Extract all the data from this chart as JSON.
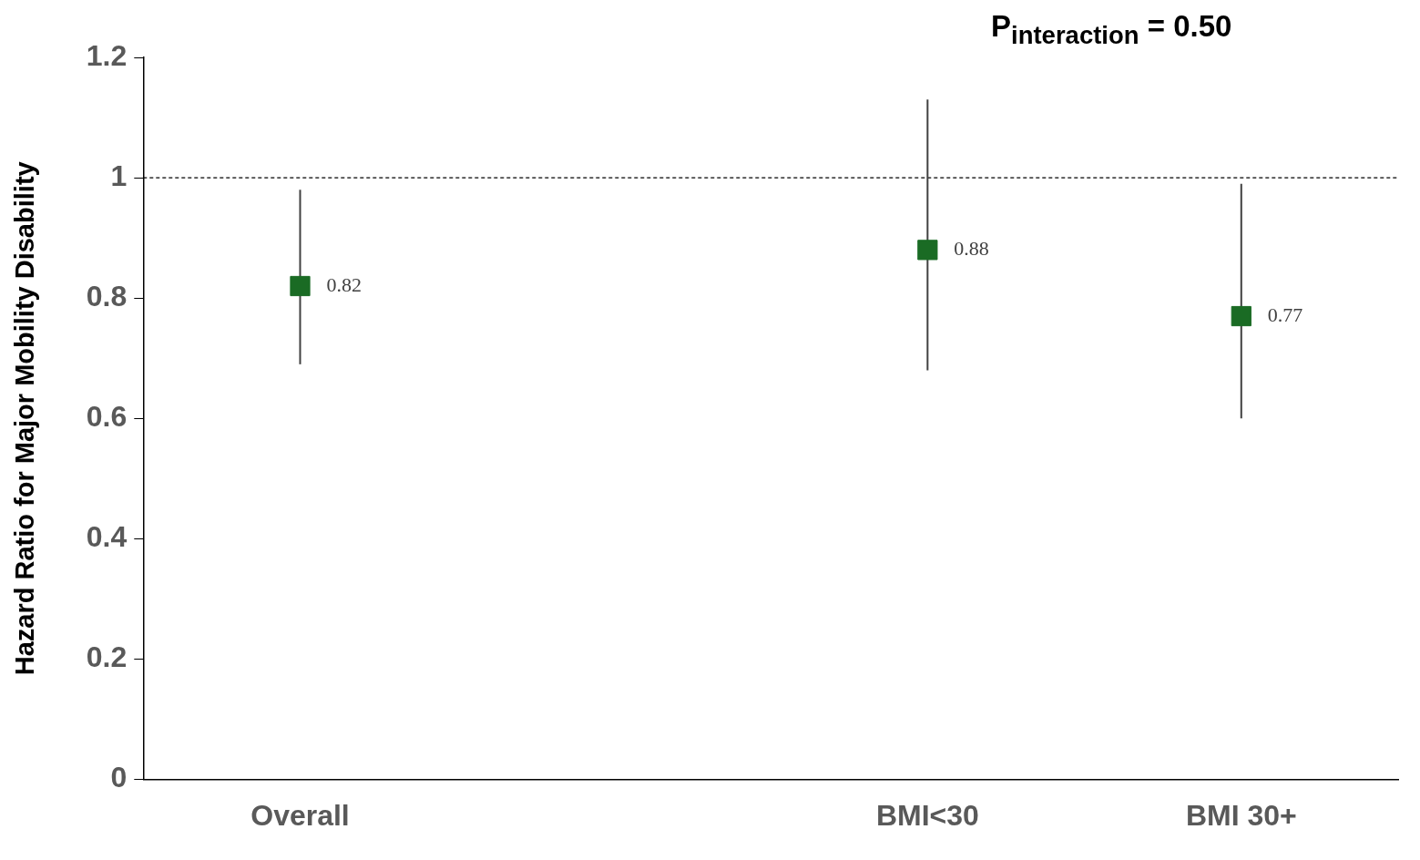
{
  "chart_data": {
    "type": "scatter",
    "ylabel": "Hazard Ratio for Major Mobility Disability",
    "annotations": [
      "P$_{interaction}$ = 0.50"
    ],
    "categories": [
      "Overall",
      null,
      "BMI<30",
      "BMI 30+"
    ],
    "series": [
      {
        "color": "#1a6b24",
        "values": [
          0.82,
          null,
          0.88,
          0.77
        ],
        "errors": [
          [
            0.69,
            0.98
          ],
          null,
          [
            0.68,
            1.13
          ],
          [
            0.6,
            0.99
          ]
        ]
      }
    ],
    "ylim": [
      0,
      1.2
    ],
    "yticks": [
      0,
      0.2,
      0.4,
      0.6,
      0.8,
      1,
      1.2
    ],
    "ref_lines": [
      {
        "axis": "y",
        "value": 1,
        "line_style": "dashed",
        "color": "#000000"
      }
    ],
    "marker": "square",
    "data_labels": true,
    "grid": false,
    "legend": false
  }
}
